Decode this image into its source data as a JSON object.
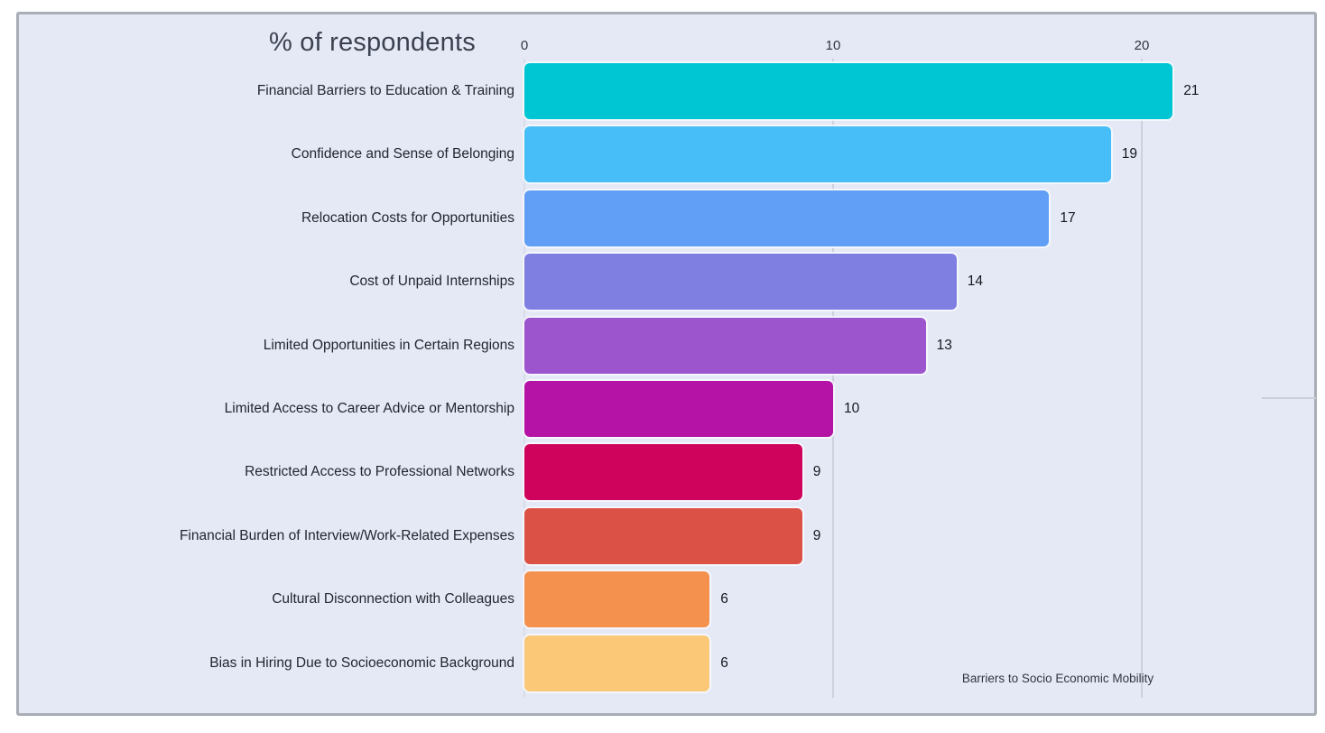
{
  "frame": {
    "page_background": "#ffffff",
    "canvas_background": "#e5e9f6",
    "border_color": "#a9aeb6"
  },
  "chart_data": {
    "type": "bar",
    "orientation": "horizontal",
    "title": "% of respondents",
    "categories": [
      "Financial Barriers to Education & Training",
      "Confidence and Sense of Belonging",
      "Relocation Costs for Opportunities",
      "Cost of Unpaid Internships",
      "Limited Opportunities in Certain Regions",
      "Limited Access to Career Advice or Mentorship",
      "Restricted Access to Professional Networks",
      "Financial Burden of Interview/Work-Related Expenses",
      "Cultural Disconnection with Colleagues",
      "Bias in Hiring Due to Socioeconomic Background"
    ],
    "values": [
      21,
      19,
      17,
      14,
      13,
      10,
      9,
      9,
      6,
      6
    ],
    "bar_colors": [
      "#00c6d3",
      "#47bef7",
      "#619ef5",
      "#7f7fe2",
      "#9c55cd",
      "#b513a5",
      "#cf035c",
      "#dc5145",
      "#f4914f",
      "#fbc878"
    ],
    "x_ticks": [
      0,
      10,
      20
    ],
    "xlim": [
      0,
      20
    ],
    "xlabel": "",
    "ylabel": "",
    "grid": true,
    "legend": false,
    "caption": "Barriers to Socio Economic Mobility",
    "title_color": "#3b4150",
    "category_label_color": "#23262e",
    "value_label_color": "#15181d",
    "tick_label_color": "#2f3540",
    "gridline_color": "#cdd1de"
  }
}
